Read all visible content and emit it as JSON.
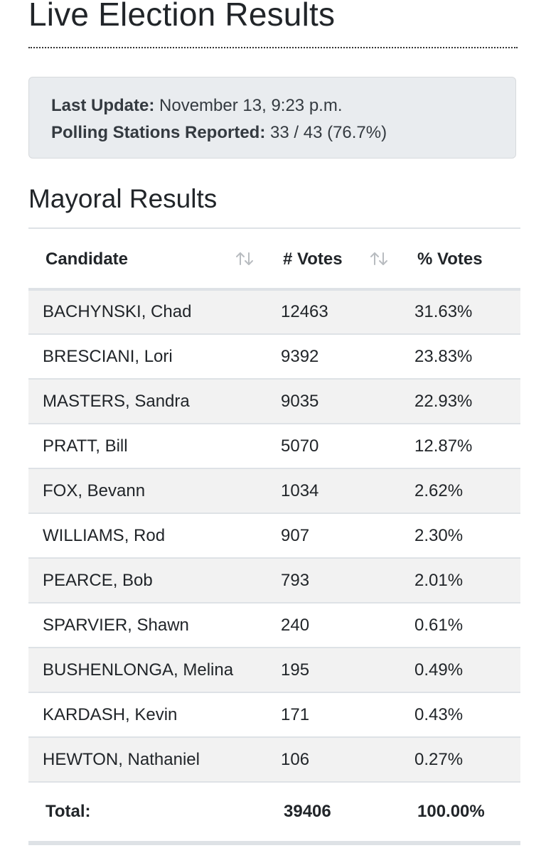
{
  "page": {
    "title": "Live Election Results"
  },
  "status": {
    "last_update_label": "Last Update:",
    "last_update_value": "November 13, 9:23 p.m.",
    "polling_label": "Polling Stations Reported:",
    "polling_value": "33 / 43 (76.7%)"
  },
  "section": {
    "title": "Mayoral Results"
  },
  "table": {
    "columns": [
      {
        "label": "Candidate",
        "sortable": true,
        "icon": "sort-icon"
      },
      {
        "label": "# Votes",
        "sortable": true,
        "icon": "sort-icon"
      },
      {
        "label": "% Votes",
        "sortable": false
      }
    ],
    "rows": [
      {
        "name": "BACHYNSKI, Chad",
        "votes": "12463",
        "pct": "31.63%"
      },
      {
        "name": "BRESCIANI, Lori",
        "votes": "9392",
        "pct": "23.83%"
      },
      {
        "name": "MASTERS, Sandra",
        "votes": "9035",
        "pct": "22.93%"
      },
      {
        "name": "PRATT, Bill",
        "votes": "5070",
        "pct": "12.87%"
      },
      {
        "name": "FOX, Bevann",
        "votes": "1034",
        "pct": "2.62%"
      },
      {
        "name": "WILLIAMS, Rod",
        "votes": "907",
        "pct": "2.30%"
      },
      {
        "name": "PEARCE, Bob",
        "votes": "793",
        "pct": "2.01%"
      },
      {
        "name": "SPARVIER, Shawn",
        "votes": "240",
        "pct": "0.61%"
      },
      {
        "name": "BUSHENLONGA, Melina",
        "votes": "195",
        "pct": "0.49%"
      },
      {
        "name": "KARDASH, Kevin",
        "votes": "171",
        "pct": "0.43%"
      },
      {
        "name": "HEWTON, Nathaniel",
        "votes": "106",
        "pct": "0.27%"
      }
    ],
    "total": {
      "label": "Total:",
      "votes": "39406",
      "pct": "100.00%"
    }
  },
  "colors": {
    "stripe": "#f2f2f2",
    "border": "#dee2e6",
    "status_box_bg": "#e9ecef",
    "text": "#212529",
    "sort_icon": "#b8bcc0"
  }
}
